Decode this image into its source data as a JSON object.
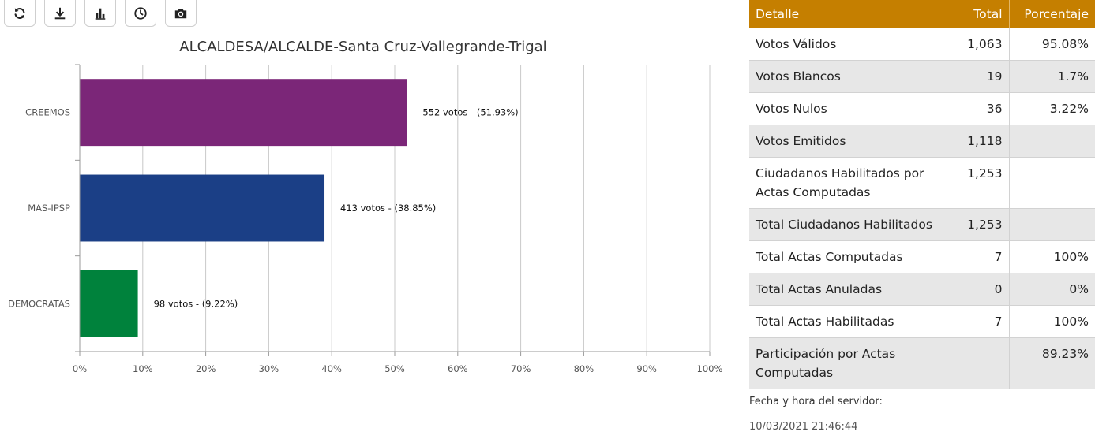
{
  "toolbar": {
    "buttons": [
      {
        "icon": "refresh-icon",
        "name": "refresh-button"
      },
      {
        "icon": "download-icon",
        "name": "download-button"
      },
      {
        "icon": "bar-chart-icon",
        "name": "bar-chart-button"
      },
      {
        "icon": "clock-icon",
        "name": "clock-button"
      },
      {
        "icon": "camera-icon",
        "name": "camera-button"
      }
    ]
  },
  "chart_data": {
    "type": "bar",
    "orientation": "horizontal",
    "title": "ALCALDESA/ALCALDE-Santa Cruz-Vallegrande-Trigal",
    "categories": [
      "CREEMOS",
      "MAS-IPSP",
      "DEMOCRATAS"
    ],
    "values": [
      51.93,
      38.85,
      9.22
    ],
    "labels": [
      "552 votos - (51.93%)",
      "413 votos - (38.85%)",
      "98 votos - (9.22%)"
    ],
    "colors": [
      "#7b2678",
      "#1b3f86",
      "#00823c"
    ],
    "xlim": [
      0,
      100
    ],
    "xticks": [
      "0%",
      "10%",
      "20%",
      "30%",
      "40%",
      "50%",
      "60%",
      "70%",
      "80%",
      "90%",
      "100%"
    ],
    "grid": true,
    "xlabel": "",
    "ylabel": ""
  },
  "table": {
    "headers": [
      "Detalle",
      "Total",
      "Porcentaje"
    ],
    "rows": [
      [
        "Votos Válidos",
        "1,063",
        "95.08%"
      ],
      [
        "Votos Blancos",
        "19",
        "1.7%"
      ],
      [
        "Votos Nulos",
        "36",
        "3.22%"
      ],
      [
        "Votos Emitidos",
        "1,118",
        ""
      ],
      [
        "Ciudadanos Habilitados por Actas Computadas",
        "1,253",
        ""
      ],
      [
        "Total Ciudadanos Habilitados",
        "1,253",
        ""
      ],
      [
        "Total Actas Computadas",
        "7",
        "100%"
      ],
      [
        "Total Actas Anuladas",
        "0",
        "0%"
      ],
      [
        "Total Actas Habilitadas",
        "7",
        "100%"
      ],
      [
        "Participación por Actas Computadas",
        "",
        "89.23%"
      ]
    ]
  },
  "server": {
    "label": "Fecha y hora del servidor:",
    "datetime": "10/03/2021 21:46:44"
  }
}
